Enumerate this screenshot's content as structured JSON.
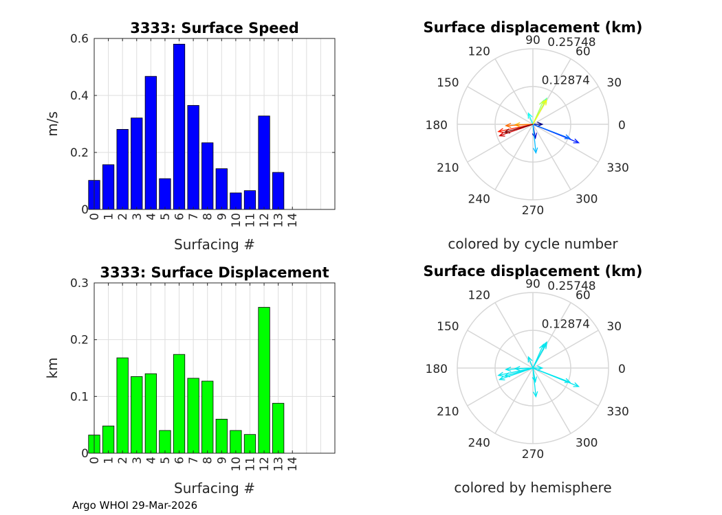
{
  "footer_text": "Argo WHOI 29-Mar-2026",
  "chart_data": [
    {
      "type": "bar",
      "title": "3333: Surface Speed",
      "xlabel": "Surfacing #",
      "ylabel": "m/s",
      "categories": [
        "0",
        "1",
        "2",
        "3",
        "4",
        "5",
        "6",
        "7",
        "8",
        "9",
        "10",
        "11",
        "12",
        "13",
        "14"
      ],
      "values": [
        0.102,
        0.157,
        0.281,
        0.321,
        0.467,
        0.108,
        0.58,
        0.365,
        0.234,
        0.143,
        0.058,
        0.066,
        0.328,
        0.13,
        null
      ],
      "ylim": [
        0,
        0.6
      ],
      "yticks": [
        0,
        0.2,
        0.4,
        0.6
      ],
      "ytick_labels": [
        "0",
        "0.2",
        "0.4",
        "0.6"
      ],
      "xlim": [
        0,
        17
      ],
      "grid": true,
      "bar_color": "#0000ff"
    },
    {
      "type": "polar-arrows",
      "title": "Surface displacement (km)",
      "xlabel": "colored by cycle number",
      "radial_ticks": [
        "0.12874",
        "0.25748"
      ],
      "rmax": 0.25748,
      "angle_labels": [
        "0",
        "30",
        "60",
        "90",
        "120",
        "150",
        "180",
        "210",
        "240",
        "270",
        "300",
        "330"
      ],
      "colormap": "jet",
      "vectors": [
        {
          "cycle": 0,
          "r": 0.032,
          "angle_deg": 0
        },
        {
          "cycle": 1,
          "r": 0.048,
          "angle_deg": -80
        },
        {
          "cycle": 2,
          "r": 0.168,
          "angle_deg": -22
        },
        {
          "cycle": 3,
          "r": 0.135,
          "angle_deg": -21
        },
        {
          "cycle": 4,
          "r": 0.098,
          "angle_deg": -84
        },
        {
          "cycle": 5,
          "r": 0.041,
          "angle_deg": 112
        },
        {
          "cycle": 6,
          "r": 0.1,
          "angle_deg": 62
        },
        {
          "cycle": 7,
          "r": 0.088,
          "angle_deg": 66
        },
        {
          "cycle": 8,
          "r": 0.095,
          "angle_deg": 61
        },
        {
          "cycle": 9,
          "r": 0.061,
          "angle_deg": 182
        },
        {
          "cycle": 10,
          "r": 0.092,
          "angle_deg": 183
        },
        {
          "cycle": 11,
          "r": 0.12,
          "angle_deg": 192
        },
        {
          "cycle": 12,
          "r": 0.12,
          "angle_deg": 199
        },
        {
          "cycle": 13,
          "r": 0.1,
          "angle_deg": 196
        }
      ]
    },
    {
      "type": "bar",
      "title": "3333: Surface Displacement",
      "xlabel": "Surfacing #",
      "ylabel": "km",
      "categories": [
        "0",
        "1",
        "2",
        "3",
        "4",
        "5",
        "6",
        "7",
        "8",
        "9",
        "10",
        "11",
        "12",
        "13",
        "14"
      ],
      "values": [
        0.032,
        0.048,
        0.168,
        0.135,
        0.14,
        0.04,
        0.174,
        0.132,
        0.127,
        0.06,
        0.04,
        0.033,
        0.257,
        0.088,
        null
      ],
      "ylim": [
        0,
        0.3
      ],
      "yticks": [
        0,
        0.1,
        0.2,
        0.3
      ],
      "ytick_labels": [
        "0",
        "0.1",
        "0.2",
        "0.3"
      ],
      "xlim": [
        0,
        17
      ],
      "grid": true,
      "bar_color": "#00ff00"
    },
    {
      "type": "polar-arrows",
      "title": "Surface displacement (km)",
      "xlabel": "colored by hemisphere",
      "radial_ticks": [
        "0.12874",
        "0.25748"
      ],
      "rmax": 0.25748,
      "angle_labels": [
        "0",
        "30",
        "60",
        "90",
        "120",
        "150",
        "180",
        "210",
        "240",
        "270",
        "300",
        "330"
      ],
      "arrow_color": "#00e5ee",
      "vectors": [
        {
          "r": 0.032,
          "angle_deg": 0
        },
        {
          "r": 0.048,
          "angle_deg": -80
        },
        {
          "r": 0.168,
          "angle_deg": -22
        },
        {
          "r": 0.135,
          "angle_deg": -21
        },
        {
          "r": 0.098,
          "angle_deg": -84
        },
        {
          "r": 0.041,
          "angle_deg": 112
        },
        {
          "r": 0.1,
          "angle_deg": 62
        },
        {
          "r": 0.088,
          "angle_deg": 66
        },
        {
          "r": 0.095,
          "angle_deg": 61
        },
        {
          "r": 0.061,
          "angle_deg": 182
        },
        {
          "r": 0.092,
          "angle_deg": 183
        },
        {
          "r": 0.12,
          "angle_deg": 192
        },
        {
          "r": 0.12,
          "angle_deg": 199
        },
        {
          "r": 0.1,
          "angle_deg": 196
        }
      ]
    }
  ]
}
